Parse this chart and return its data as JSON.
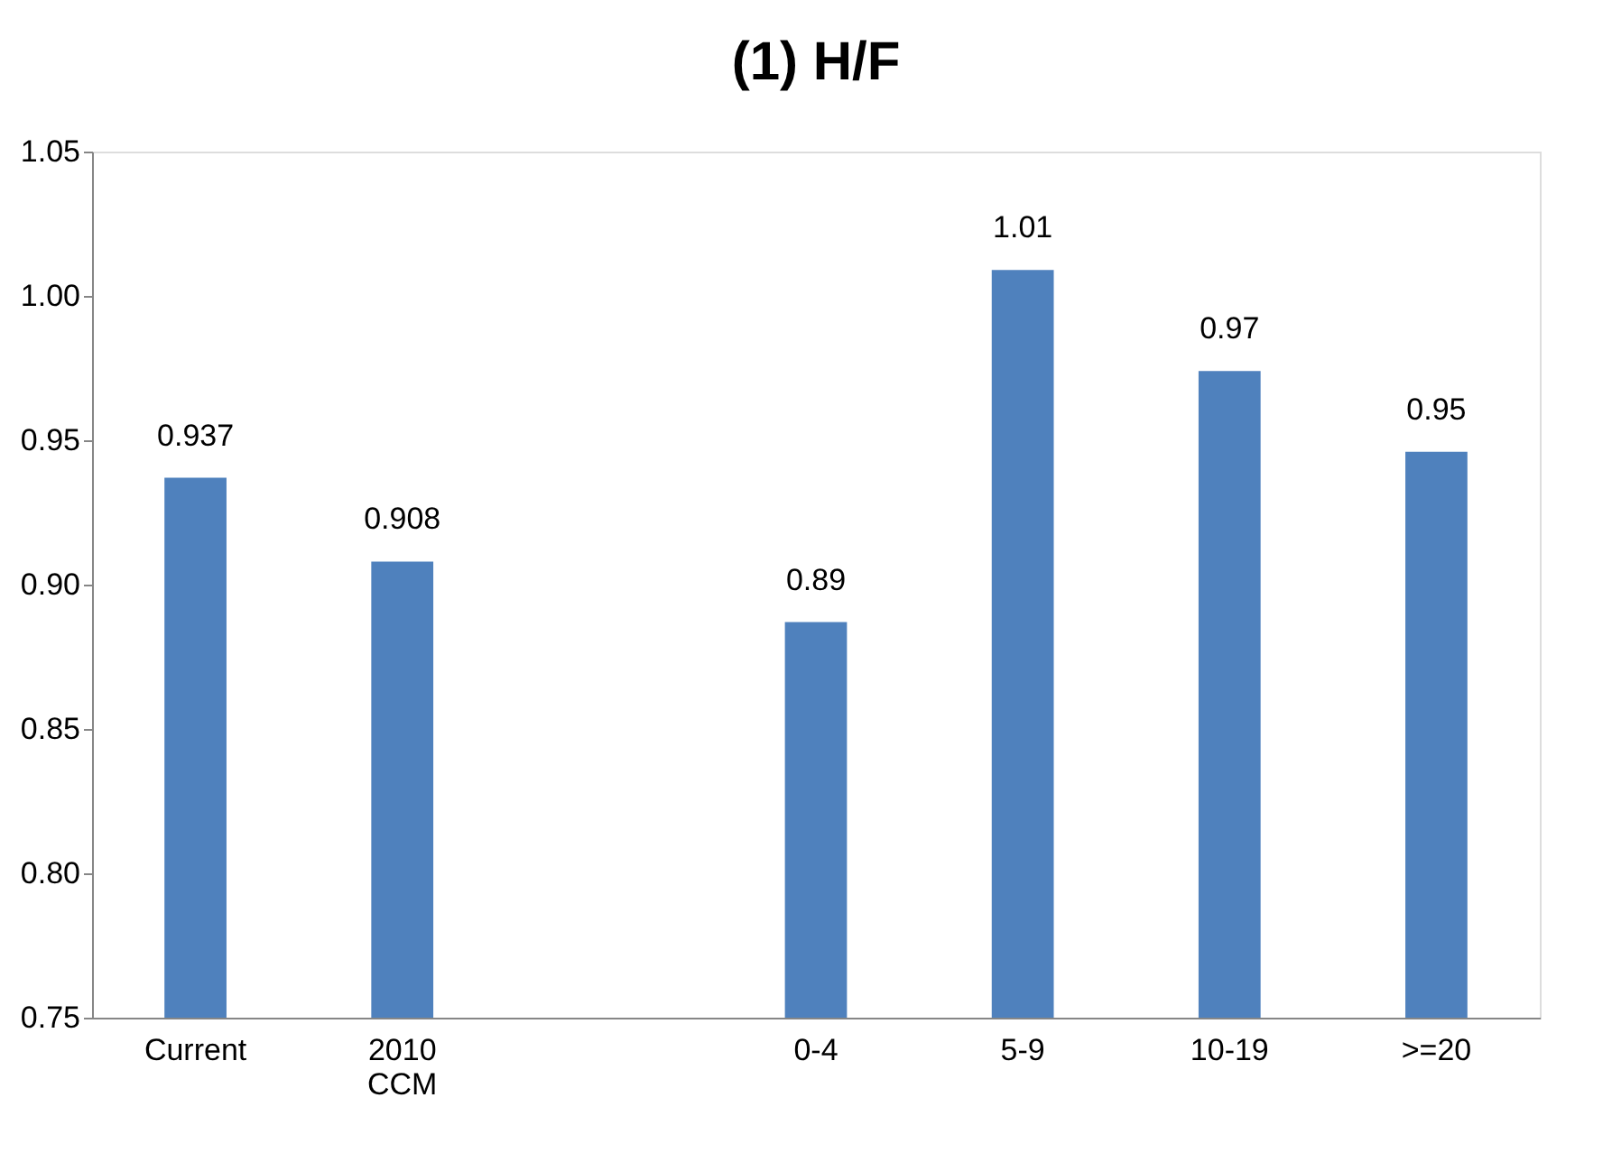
{
  "chart_data": {
    "type": "bar",
    "title": "(1) H/F",
    "categories": [
      "Current",
      "2010 CCM",
      null,
      "0-4",
      "5-9",
      "10-19",
      ">=20"
    ],
    "values": [
      0.937,
      0.908,
      null,
      0.887,
      1.009,
      0.974,
      0.946
    ],
    "value_labels": [
      "0.937",
      "0.908",
      null,
      "0.89",
      "1.01",
      "0.97",
      "0.95"
    ],
    "color": "#4f81bd",
    "ylim": [
      0.75,
      1.05
    ],
    "yticks": [
      0.75,
      {
        "value": 0.8,
        "label": "0.80"
      },
      0.85,
      {
        "value": 0.9,
        "label": "0.90"
      },
      0.95,
      {
        "value": 1.0,
        "label": "1.00"
      },
      1.05
    ],
    "grid": false
  }
}
